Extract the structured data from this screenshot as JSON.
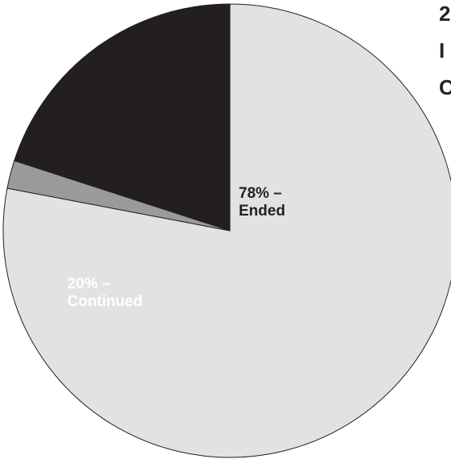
{
  "chart_data": {
    "type": "pie",
    "start_angle_deg": 0,
    "direction": "clockwise",
    "slices": [
      {
        "label_lines": [
          "78% –",
          "Ended"
        ],
        "value": 78,
        "color": "#e2e2e2"
      },
      {
        "label_lines": [
          "",
          ""
        ],
        "value": 2,
        "color": "#9a9a9a"
      },
      {
        "label_lines": [
          "20% –",
          "Continued"
        ],
        "value": 20,
        "color": "#231f20"
      }
    ],
    "label_colors": [
      "#222222",
      "#222222",
      "#ffffff"
    ],
    "right_labels": [
      "2",
      "I",
      "C"
    ]
  }
}
